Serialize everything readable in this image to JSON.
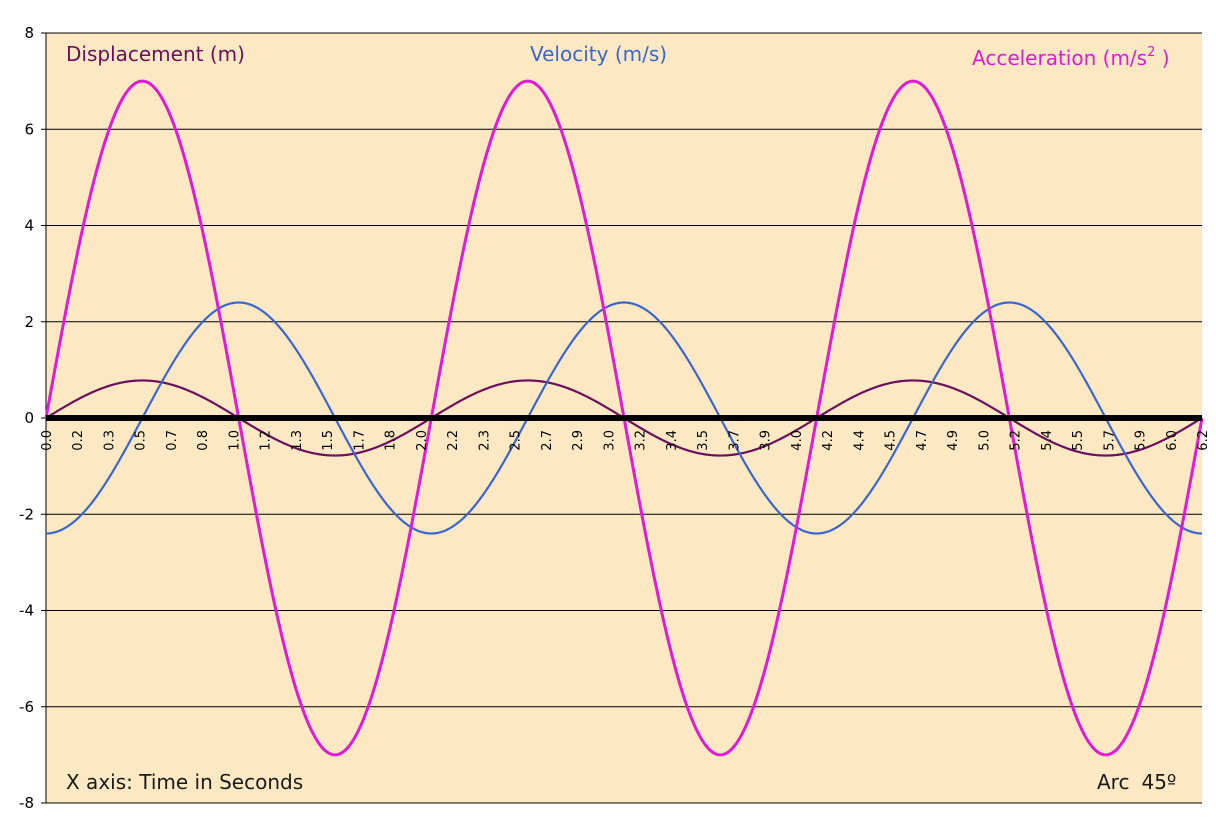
{
  "chart_data": {
    "type": "line",
    "title": "",
    "xlabel": "",
    "ylabel": "",
    "xlim": [
      0,
      6.2832
    ],
    "ylim": [
      -8,
      8
    ],
    "y_ticks": [
      8,
      6,
      4,
      2,
      0,
      -2,
      -4,
      -6,
      -8
    ],
    "y_tick_labels": [
      "8",
      "6",
      "4",
      "2",
      "0",
      "-2",
      "-4",
      "-6",
      "-8"
    ],
    "x_tick_labels": [
      "0.0",
      "0.2",
      "0.3",
      "0.5",
      "0.7",
      "0.8",
      "1.0",
      "1.2",
      "1.3",
      "1.5",
      "1.7",
      "1.8",
      "2.0",
      "2.2",
      "2.3",
      "2.5",
      "2.7",
      "2.9",
      "3.0",
      "3.2",
      "3.4",
      "3.5",
      "3.7",
      "3.9",
      "4.0",
      "4.2",
      "4.4",
      "4.5",
      "4.7",
      "4.9",
      "5.0",
      "5.2",
      "5.4",
      "5.5",
      "5.7",
      "5.9",
      "6.0",
      "6.2"
    ],
    "grid": "horizontal",
    "background": "#FCE9C4",
    "legend_placement": "top",
    "series": [
      {
        "name": "Displacement (m)",
        "color": "#6B0F5E",
        "amplitude": 0.78,
        "angular_frequency": 3,
        "phase": "sin"
      },
      {
        "name": "Velocity (m/s)",
        "color": "#3A66CF",
        "amplitude": 2.4,
        "angular_frequency": 3,
        "phase": "-cos"
      },
      {
        "name": "Acceleration (m/s",
        "name_superscript": "2",
        "name_suffix": " )",
        "color": "#E01BD8",
        "amplitude": 7.0,
        "angular_frequency": 3,
        "phase": "sin"
      }
    ],
    "annotations": {
      "x_axis_note": "X axis: Time in Seconds",
      "arc_label": "Arc",
      "arc_value": "45º"
    }
  }
}
